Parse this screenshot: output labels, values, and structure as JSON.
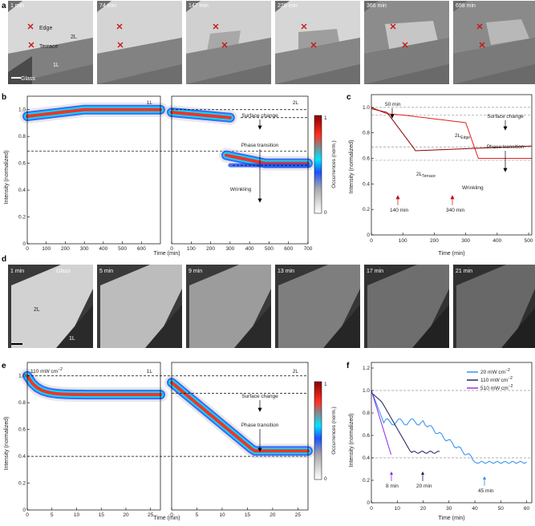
{
  "panels": {
    "a": {
      "label": "a",
      "frames": [
        "1 min",
        "74 min",
        "147 min",
        "220 min",
        "366 min",
        "698 min"
      ],
      "labels": {
        "edge": "Edge",
        "terrace": "Terrace",
        "bilayer": "2L",
        "monolayer": "1L",
        "glass": "Glass"
      }
    },
    "b": {
      "label": "b",
      "ylabel": "Intensity (normalized)",
      "xlabel": "Time (min)",
      "left_title": "1L",
      "right_title": "2L",
      "yticks": [
        "0",
        "0.2",
        "0.4",
        "0.6",
        "0.8",
        "1.0"
      ],
      "xticks_left": [
        "0",
        "100",
        "200",
        "300",
        "400",
        "500",
        "600"
      ],
      "xticks_right": [
        "0",
        "100",
        "200",
        "300",
        "400",
        "500",
        "600",
        "700"
      ],
      "annotations": {
        "surface": "Surface change",
        "phase": "Phase transition",
        "wrinkling": "Wrinkling"
      },
      "colorbar": {
        "label": "Occurrences (norm.)",
        "max": "1",
        "min": "0"
      }
    },
    "c": {
      "label": "c",
      "ylabel": "Intensity (normalized)",
      "xlabel": "Time (min)",
      "yticks": [
        "0",
        "0.2",
        "0.4",
        "0.6",
        "0.8",
        "1.0"
      ],
      "xticks": [
        "0",
        "100",
        "200",
        "300",
        "400",
        "500"
      ],
      "annotations": {
        "t50": "50 min",
        "t140": "140 min",
        "t340": "340 min",
        "surface": "Surface change",
        "phase": "Phase transition",
        "wrinkling": "Wrinkling",
        "edge_main": "2L",
        "edge_sub": "Edge",
        "terrace_main": "2L",
        "terrace_sub": "Terrace"
      }
    },
    "d": {
      "label": "d",
      "frames": [
        "1 min",
        "5 min",
        "9 min",
        "13 min",
        "17 min",
        "21 min"
      ],
      "labels": {
        "glass": "Glass",
        "bilayer": "2L",
        "monolayer": "1L"
      }
    },
    "e": {
      "label": "e",
      "ylabel": "Intensity (normalized)",
      "xlabel": "Time (min)",
      "power_main": "110 mW cm",
      "power_sup": "−2",
      "left_title": "1L",
      "right_title": "2L",
      "yticks": [
        "0",
        "0.2",
        "0.4",
        "0.6",
        "0.8",
        "1.0"
      ],
      "xticks": [
        "0",
        "5",
        "10",
        "15",
        "20",
        "25"
      ],
      "annotations": {
        "surface": "Surface change",
        "phase": "Phase transition"
      },
      "colorbar": {
        "label": "Occurrences (norm.)",
        "max": "1",
        "min": "0"
      }
    },
    "f": {
      "label": "f",
      "ylabel": "Intensity (normalized)",
      "xlabel": "Time (min)",
      "yticks": [
        "0",
        "0.2",
        "0.4",
        "0.6",
        "0.8",
        "1.0",
        "1.2"
      ],
      "xticks": [
        "0",
        "10",
        "20",
        "30",
        "40",
        "50",
        "60"
      ],
      "legend": [
        {
          "main": "20 mW cm",
          "sup": "−2",
          "color": "#2b8cf0"
        },
        {
          "main": "110 mW cm",
          "sup": "−2",
          "color": "#1a1a5e"
        },
        {
          "main": "510 mW cm",
          "sup": "−2",
          "color": "#8a2be2"
        }
      ],
      "annotations": {
        "t8": "8 min",
        "t20": "20 min",
        "t45": "45 min"
      }
    }
  }
}
